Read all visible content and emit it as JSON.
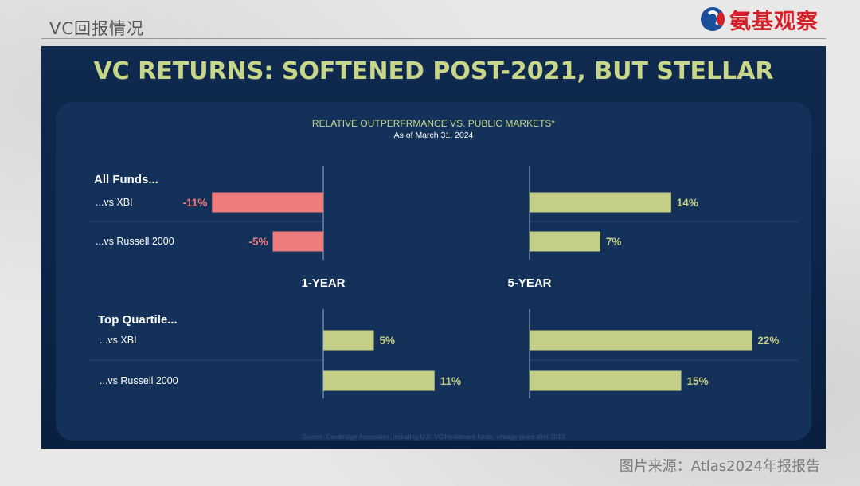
{
  "header": {
    "section_label": "VC回报情况",
    "logo_text": "氨基观察"
  },
  "slide": {
    "title": "VC RETURNS: SOFTENED POST-2021, BUT STELLAR",
    "subtitle": "RELATIVE OUTPERFRMANCE VS. PUBLIC MARKETS*",
    "as_of": "As of March 31, 2024",
    "source": "Source: Cambridge Associates, including U.S. VC Healthcare funds, vintage years after 2013"
  },
  "footer": {
    "credit": "图片来源：Atlas2024年报报告"
  },
  "colors": {
    "negative": "#f07b7d",
    "positive": "#c6cf88",
    "accent_text": "#c8d68a",
    "background": "#0c2547"
  },
  "chart_data": {
    "type": "bar",
    "orientation": "horizontal",
    "unit": "%",
    "periods": [
      "1-YEAR",
      "5-YEAR"
    ],
    "groups": [
      {
        "name": "All Funds...",
        "rows": [
          {
            "label": "...vs XBI",
            "values": [
              -11,
              14
            ],
            "value_labels": [
              "-11%",
              "14%"
            ]
          },
          {
            "label": "...vs Russell 2000",
            "values": [
              -5,
              7
            ],
            "value_labels": [
              "-5%",
              "7%"
            ]
          }
        ]
      },
      {
        "name": "Top Quartile...",
        "rows": [
          {
            "label": "...vs XBI",
            "values": [
              5,
              22
            ],
            "value_labels": [
              "5%",
              "22%"
            ]
          },
          {
            "label": "...vs Russell 2000",
            "values": [
              11,
              15
            ],
            "value_labels": [
              "11%",
              "15%"
            ]
          }
        ]
      }
    ]
  }
}
